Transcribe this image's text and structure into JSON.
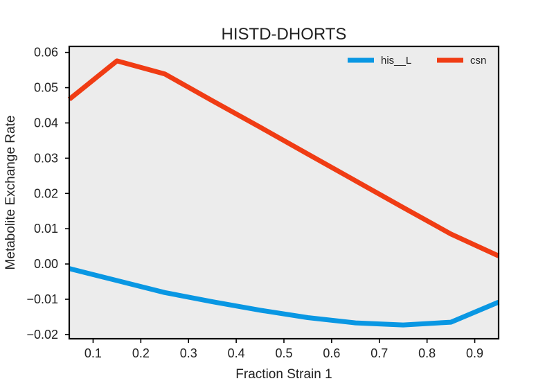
{
  "chart_data": {
    "type": "line",
    "title": "HISTD-DHORTS",
    "xlabel": "Fraction Strain 1",
    "ylabel": "Metabolite Exchange Rate",
    "xlim": [
      0.05,
      0.95
    ],
    "ylim": [
      -0.0212,
      0.0617
    ],
    "xticks": [
      0.1,
      0.2,
      0.3,
      0.4,
      0.5,
      0.6,
      0.7,
      0.8,
      0.9
    ],
    "xtick_labels": [
      "0.1",
      "0.2",
      "0.3",
      "0.4",
      "0.5",
      "0.6",
      "0.7",
      "0.8",
      "0.9"
    ],
    "yticks": [
      -0.02,
      -0.01,
      0.0,
      0.01,
      0.02,
      0.03,
      0.04,
      0.05,
      0.06
    ],
    "ytick_labels": [
      "−0.02",
      "−0.01",
      "0.00",
      "0.01",
      "0.02",
      "0.03",
      "0.04",
      "0.05",
      "0.06"
    ],
    "grid": false,
    "background": "#ececec",
    "legend_position": "top-right",
    "x": [
      0.05,
      0.15,
      0.25,
      0.35,
      0.45,
      0.55,
      0.65,
      0.75,
      0.85,
      0.95
    ],
    "series": [
      {
        "name": "his__L",
        "color": "#0997e3",
        "values": [
          -0.0013,
          -0.0047,
          -0.0081,
          -0.0107,
          -0.0131,
          -0.0152,
          -0.0167,
          -0.0173,
          -0.0165,
          -0.0108
        ]
      },
      {
        "name": "csn",
        "color": "#f03c14",
        "values": [
          0.0467,
          0.0576,
          0.0539,
          0.0463,
          0.0388,
          0.0312,
          0.0236,
          0.016,
          0.0085,
          0.0023
        ]
      }
    ]
  }
}
